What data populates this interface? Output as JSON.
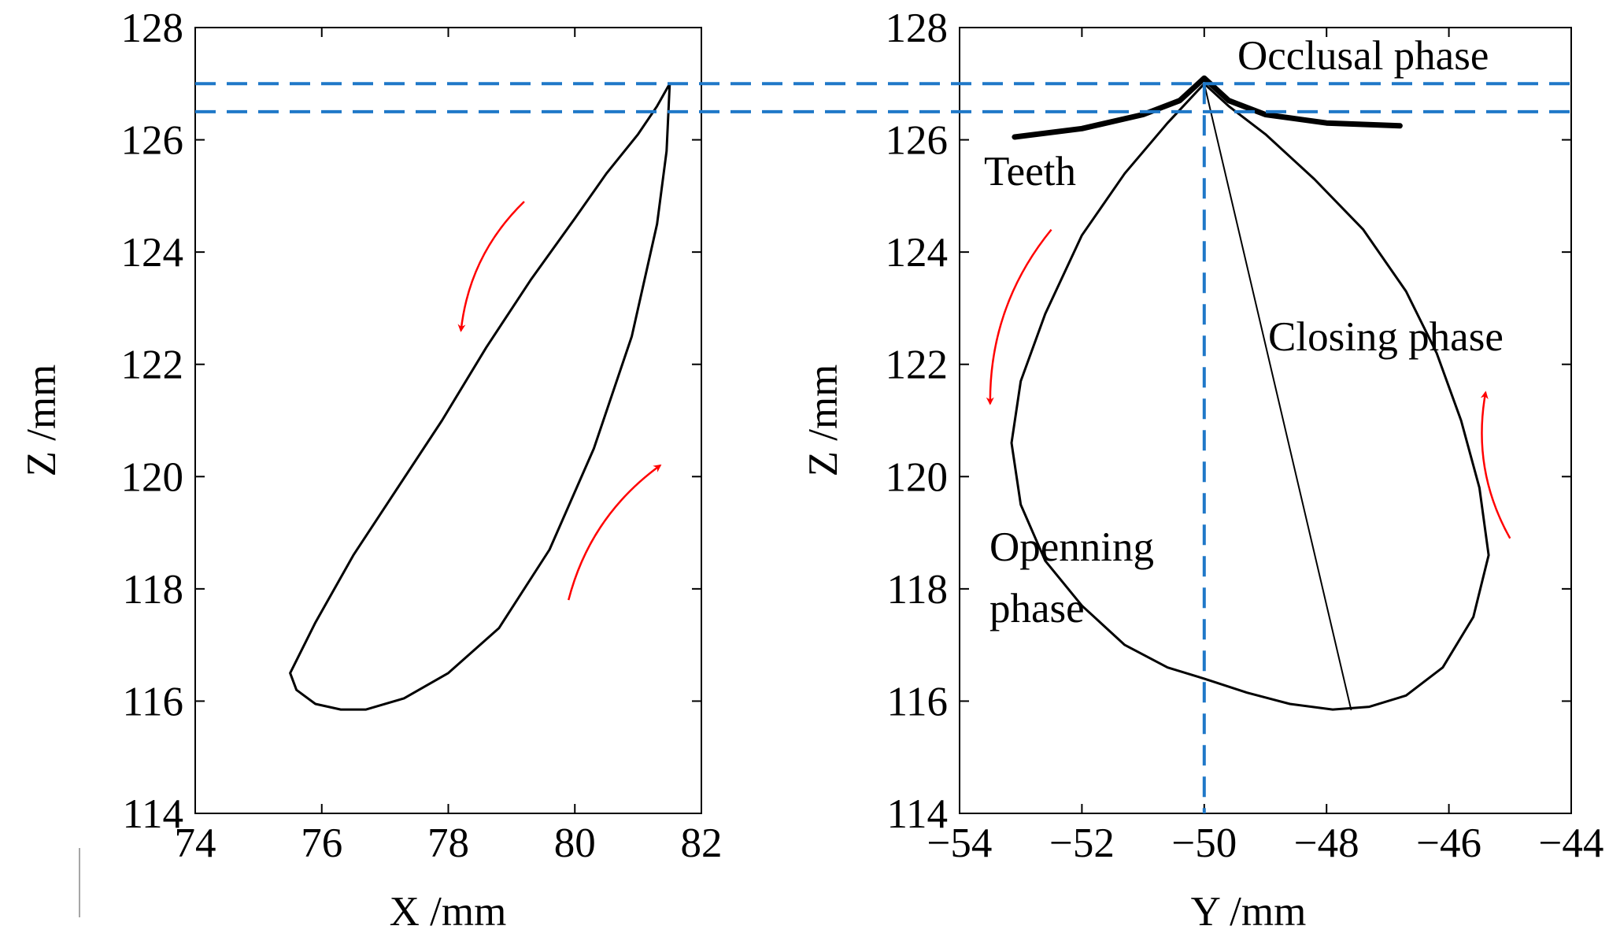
{
  "chart_data": [
    {
      "type": "line",
      "xlabel": "X /mm",
      "ylabel": "Z /mm",
      "xlim": [
        74,
        82
      ],
      "ylim": [
        114,
        128
      ],
      "xticks": [
        74,
        76,
        78,
        80,
        82
      ],
      "yticks": [
        114,
        116,
        118,
        120,
        122,
        124,
        126,
        128
      ],
      "grid": false,
      "series": [
        {
          "name": "trajectory",
          "x": [
            81.5,
            81.3,
            81.0,
            80.5,
            80.0,
            79.3,
            78.6,
            77.9,
            77.2,
            76.5,
            75.9,
            75.5,
            75.6,
            75.9,
            76.3,
            76.7,
            77.3,
            78.0,
            78.8,
            79.6,
            80.3,
            80.9,
            81.3,
            81.45,
            81.5
          ],
          "y": [
            127.0,
            126.6,
            126.1,
            125.4,
            124.6,
            123.5,
            122.3,
            121.0,
            119.8,
            118.6,
            117.4,
            116.5,
            116.2,
            115.95,
            115.85,
            115.85,
            116.05,
            116.5,
            117.3,
            118.7,
            120.5,
            122.5,
            124.5,
            125.8,
            127.0
          ]
        }
      ],
      "guide_lines_z": [
        127.0,
        126.5
      ],
      "arrows": [
        {
          "direction": "down",
          "from": [
            79.2,
            124.9
          ],
          "to": [
            78.2,
            122.6
          ]
        },
        {
          "direction": "up",
          "from": [
            79.9,
            117.8
          ],
          "to": [
            81.35,
            120.2
          ]
        }
      ]
    },
    {
      "type": "line",
      "xlabel": "Y /mm",
      "ylabel": "Z /mm",
      "xlim": [
        -54,
        -44
      ],
      "ylim": [
        114,
        128
      ],
      "xticks": [
        -54,
        -52,
        -50,
        -48,
        -46,
        -44
      ],
      "xtick_labels": [
        "−54",
        "−52",
        "−50",
        "−48",
        "−46",
        "−44"
      ],
      "yticks": [
        114,
        116,
        118,
        120,
        122,
        124,
        126,
        128
      ],
      "grid": false,
      "series": [
        {
          "name": "trajectory",
          "x": [
            -50.0,
            -50.6,
            -51.3,
            -52.0,
            -52.6,
            -53.0,
            -53.15,
            -53.0,
            -52.6,
            -52.0,
            -51.3,
            -50.6,
            -50.0,
            -49.3,
            -48.6,
            -47.9,
            -47.3,
            -46.7,
            -46.1,
            -45.6,
            -45.35,
            -45.5,
            -45.8,
            -46.2,
            -46.7,
            -47.4,
            -48.2,
            -49.0,
            -49.6,
            -50.0
          ],
          "y": [
            127.0,
            126.3,
            125.4,
            124.3,
            122.9,
            121.7,
            120.6,
            119.5,
            118.5,
            117.7,
            117.0,
            116.6,
            116.4,
            116.15,
            115.95,
            115.85,
            115.9,
            116.1,
            116.6,
            117.5,
            118.6,
            119.8,
            121.0,
            122.2,
            123.3,
            124.4,
            125.3,
            126.1,
            126.6,
            127.0
          ]
        },
        {
          "name": "closing chord",
          "x": [
            -50.0,
            -47.6
          ],
          "y": [
            127.0,
            115.85
          ]
        },
        {
          "name": "Teeth",
          "x": [
            -53.1,
            -52.0,
            -51.0,
            -50.4,
            -50.0,
            -49.6,
            -49.0,
            -48.0,
            -46.8
          ],
          "y": [
            126.05,
            126.2,
            126.45,
            126.7,
            127.1,
            126.7,
            126.45,
            126.3,
            126.25
          ]
        }
      ],
      "guide_lines_z": [
        127.0,
        126.5
      ],
      "guide_line_y": -50.0,
      "annotations": [
        "Occlusal phase",
        "Teeth",
        "Closing phase",
        "Openning",
        "phase"
      ],
      "arrows": [
        {
          "direction": "down",
          "from": [
            -52.5,
            124.4
          ],
          "to": [
            -53.5,
            121.3
          ]
        },
        {
          "direction": "up",
          "from": [
            -45.0,
            118.9
          ],
          "to": [
            -45.4,
            121.5
          ]
        }
      ]
    }
  ],
  "colors": {
    "curve": "#000000",
    "guide": "#1f78c8",
    "arrow": "#ff0000"
  }
}
